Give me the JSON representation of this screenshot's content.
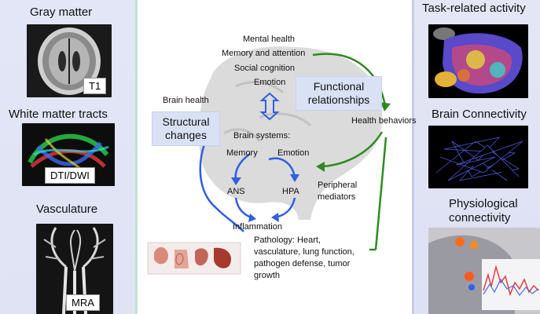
{
  "left_panel": {
    "gray_matter": {
      "title": "Gray matter",
      "badge": "T1"
    },
    "white_matter": {
      "title": "White matter tracts",
      "badge": "DTI/DWI"
    },
    "vasculature": {
      "title": "Vasculature",
      "badge": "MRA"
    }
  },
  "right_panel": {
    "task": {
      "title": "Task-related activity"
    },
    "connectivity": {
      "title": "Brain Connectivity"
    },
    "physio": {
      "title_line1": "Physiological",
      "title_line2": "connectivity"
    }
  },
  "diagram": {
    "top_labels": [
      "Mental health",
      "Memory and attention",
      "Social cognition",
      "Emotion"
    ],
    "brain_health": "Brain health",
    "structural_changes": "Structural changes",
    "functional_relationships": "Functional relationships",
    "health_behaviors": "Health behaviors",
    "brain_systems": "Brain systems:",
    "memory": "Memory",
    "emotion": "Emotion",
    "ans": "ANS",
    "hpa": "HPA",
    "peripheral_mediators_1": "Peripheral",
    "peripheral_mediators_2": "mediators",
    "inflammation": "Inflammation",
    "pathology_lines": [
      "Pathology:  Heart,",
      "vasculature, lung function,",
      "pathogen defense, tumor",
      "growth"
    ]
  },
  "colors": {
    "blue_arrow": "#2f5fe0",
    "green_arrow": "#2e8b1f",
    "box_fill": "#d9e2f5"
  }
}
